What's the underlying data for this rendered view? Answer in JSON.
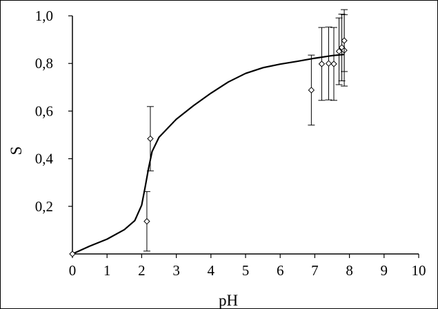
{
  "chart_data": {
    "type": "scatter",
    "xlabel": "pH",
    "ylabel": "S",
    "xlim": [
      0,
      10
    ],
    "ylim": [
      0,
      1.0
    ],
    "x_ticks": [
      "0",
      "1",
      "2",
      "3",
      "4",
      "5",
      "6",
      "7",
      "8",
      "9",
      "10"
    ],
    "y_ticks": [
      "0,2",
      "0,4",
      "0,6",
      "0,8",
      "1,0"
    ],
    "grid": false,
    "legend": "none",
    "colors": {
      "line": "#000000",
      "markers": "#000000"
    },
    "series": [
      {
        "kind": "points",
        "marker": "diamond-open",
        "points": [
          {
            "x": 0.0,
            "y": 0.0,
            "err": 0.0
          },
          {
            "x": 2.15,
            "y": 0.137,
            "err": 0.125
          },
          {
            "x": 2.25,
            "y": 0.484,
            "err": 0.135
          },
          {
            "x": 6.9,
            "y": 0.688,
            "err": 0.147
          },
          {
            "x": 7.2,
            "y": 0.798,
            "err": 0.153
          },
          {
            "x": 7.4,
            "y": 0.8,
            "err": 0.153
          },
          {
            "x": 7.55,
            "y": 0.798,
            "err": 0.153
          },
          {
            "x": 7.7,
            "y": 0.851,
            "err": 0.14
          },
          {
            "x": 7.78,
            "y": 0.867,
            "err": 0.14
          },
          {
            "x": 7.85,
            "y": 0.855,
            "err": 0.15
          },
          {
            "x": 7.85,
            "y": 0.896,
            "err": 0.13
          }
        ]
      },
      {
        "kind": "curve",
        "points": [
          [
            0.0,
            0.0
          ],
          [
            0.5,
            0.033
          ],
          [
            1.0,
            0.062
          ],
          [
            1.5,
            0.102
          ],
          [
            1.8,
            0.14
          ],
          [
            2.0,
            0.205
          ],
          [
            2.1,
            0.28
          ],
          [
            2.2,
            0.36
          ],
          [
            2.3,
            0.43
          ],
          [
            2.5,
            0.49
          ],
          [
            3.0,
            0.566
          ],
          [
            3.5,
            0.623
          ],
          [
            4.0,
            0.675
          ],
          [
            4.5,
            0.722
          ],
          [
            5.0,
            0.758
          ],
          [
            5.5,
            0.782
          ],
          [
            6.0,
            0.797
          ],
          [
            6.5,
            0.809
          ],
          [
            7.0,
            0.822
          ],
          [
            7.5,
            0.833
          ],
          [
            7.85,
            0.838
          ]
        ]
      }
    ]
  }
}
